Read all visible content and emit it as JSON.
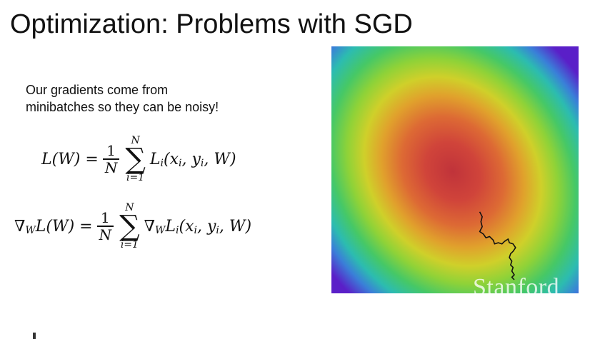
{
  "slide": {
    "title": "Optimization: Problems with SGD",
    "body_lines": [
      "Our gradients come from",
      "minibatches so they can be noisy!"
    ],
    "eq1": {
      "lhs": "L(W) =",
      "frac_num": "1",
      "frac_den": "N",
      "sum_upper": "N",
      "sum_symbol": "∑",
      "sum_lower": "i=1",
      "term_head": "L",
      "term_sub": "i",
      "term_args": "(x",
      "args_rest": ", y",
      "args_end": ", W)",
      "x_sub": "i",
      "y_sub": "i"
    },
    "eq2": {
      "grad": "∇",
      "grad_sub": "W",
      "lhs": "L(W) =",
      "frac_num": "1",
      "frac_den": "N",
      "sum_upper": "N",
      "sum_symbol": "∑",
      "sum_lower": "i=1",
      "term_grad": "∇",
      "term_grad_sub": "W",
      "term_head": "L",
      "term_sub": "i",
      "term_args": "(x",
      "args_rest": ", y",
      "args_end": ", W)",
      "x_sub": "i",
      "y_sub": "i"
    },
    "watermark": "Stanford"
  },
  "colors": {
    "background": "#ffffff",
    "text": "#111111",
    "contour_center": "#c0333a",
    "contour_edge": "#5a1fc8",
    "path": "#111111"
  },
  "plot": {
    "type": "loss-landscape-heatmap",
    "description_icon": "sgd-noisy-path",
    "minimum": [
      0.45,
      0.5
    ],
    "path_points": [
      [
        0.6,
        0.67
      ],
      [
        0.61,
        0.69
      ],
      [
        0.605,
        0.71
      ],
      [
        0.61,
        0.73
      ],
      [
        0.6,
        0.75
      ],
      [
        0.615,
        0.76
      ],
      [
        0.625,
        0.775
      ],
      [
        0.64,
        0.77
      ],
      [
        0.655,
        0.785
      ],
      [
        0.66,
        0.8
      ],
      [
        0.675,
        0.795
      ],
      [
        0.69,
        0.8
      ],
      [
        0.7,
        0.79
      ],
      [
        0.715,
        0.78
      ],
      [
        0.72,
        0.795
      ],
      [
        0.735,
        0.8
      ],
      [
        0.745,
        0.815
      ],
      [
        0.735,
        0.83
      ],
      [
        0.725,
        0.84
      ],
      [
        0.72,
        0.855
      ],
      [
        0.73,
        0.87
      ],
      [
        0.725,
        0.885
      ],
      [
        0.735,
        0.895
      ],
      [
        0.73,
        0.91
      ],
      [
        0.74,
        0.925
      ],
      [
        0.73,
        0.935
      ],
      [
        0.74,
        0.945
      ]
    ]
  }
}
